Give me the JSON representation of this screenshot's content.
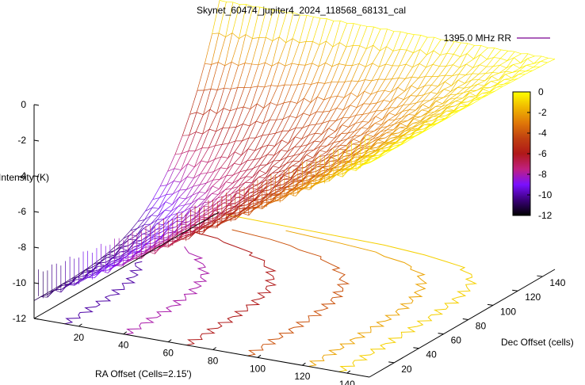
{
  "chart_data": {
    "type": "surface",
    "title": "Skynet_60474_jupiter4_2024_118568_68131_cal",
    "xlabel": "RA Offset (Cells=2.15')",
    "ylabel": "Dec Offset (cells)",
    "zlabel": "Intensity (K)",
    "xlim": [
      0,
      150
    ],
    "ylim": [
      0,
      150
    ],
    "zlim": [
      -12,
      0
    ],
    "x_ticks": [
      "20",
      "40",
      "60",
      "80",
      "100",
      "120",
      "140"
    ],
    "y_ticks": [
      "20",
      "40",
      "60",
      "80",
      "100",
      "120",
      "140"
    ],
    "z_ticks": [
      "0",
      "-2",
      "-4",
      "-6",
      "-8",
      "-10",
      "-12"
    ],
    "colorbar_ticks": [
      "0",
      "-2",
      "-4",
      "-6",
      "-8",
      "-10",
      "-12"
    ],
    "colorbar_range": [
      -12,
      0
    ],
    "colormap": [
      "#000000",
      "#3a007a",
      "#7a10ff",
      "#c02080",
      "#b01818",
      "#c04010",
      "#e07808",
      "#f0b800",
      "#ffff00"
    ],
    "legend": {
      "label": "1395.0 MHz RR",
      "color": "#7a0090",
      "position": "top-right"
    },
    "contour_levels": [
      -1,
      -2,
      -4,
      -6,
      -8,
      -10
    ],
    "surface_description": "Intensity increases roughly linearly along RA offset from about -11 K at RA 0 to about 0 K at RA 150; near Dec 150 the surface is near 0 K across RA."
  }
}
